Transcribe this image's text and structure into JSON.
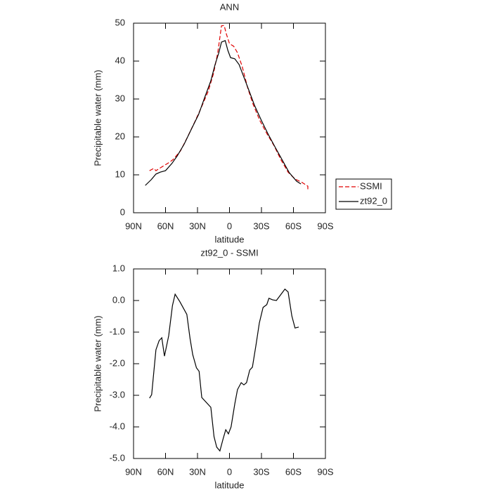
{
  "chart_data": [
    {
      "type": "line",
      "title": "ANN",
      "xlabel": "latitude",
      "ylabel": "Precipitable water  (mm)",
      "xlim": [
        90,
        -90
      ],
      "xticks": [
        {
          "value": 90,
          "label": "90N"
        },
        {
          "value": 60,
          "label": "60N"
        },
        {
          "value": 30,
          "label": "30N"
        },
        0,
        {
          "value": -30,
          "label": "30S"
        },
        {
          "value": -60,
          "label": "60S"
        },
        {
          "value": -90,
          "label": "90S"
        }
      ],
      "ylim": [
        0,
        50
      ],
      "yticks": [
        0,
        10,
        20,
        30,
        40,
        50
      ],
      "legend": "right",
      "series": [
        {
          "name": "SSMI",
          "color": "#e00000",
          "line_style": "dashed",
          "x": [
            75,
            71,
            69,
            64,
            58,
            53,
            46,
            40,
            33,
            27,
            20,
            15,
            11,
            7.5,
            5,
            3,
            0,
            -4,
            -7.5,
            -12,
            -17,
            -22,
            -28.5,
            -35,
            -42,
            -48,
            -55,
            -61.5,
            -68,
            -73.5,
            -73.5
          ],
          "values": [
            11.1,
            11.7,
            11.1,
            12,
            13,
            14,
            16.3,
            19.6,
            23.7,
            27.4,
            32,
            36.7,
            42.2,
            49.3,
            49.4,
            47.2,
            44.6,
            43.9,
            42.2,
            38.5,
            33,
            28.7,
            24.3,
            20.9,
            17.6,
            14.1,
            10.7,
            8.9,
            8,
            7,
            6.1
          ]
        },
        {
          "name": "zt92_0",
          "color": "#000000",
          "line_style": "solid",
          "x": [
            79,
            73.5,
            69,
            65,
            60,
            54,
            49,
            42.5,
            36,
            29,
            23,
            17.5,
            13.5,
            10,
            7.5,
            4,
            1.5,
            -1,
            -5,
            -9,
            -14,
            -19,
            -23.5,
            -30,
            -36.5,
            -43,
            -49.5,
            -56,
            -63,
            -67
          ],
          "values": [
            7.2,
            8.7,
            10.2,
            10.7,
            11.1,
            13,
            15,
            18.1,
            21.9,
            25.9,
            30.6,
            34.8,
            39.1,
            42.2,
            45,
            45.4,
            42.8,
            40.9,
            40.6,
            39.1,
            35.4,
            31.7,
            28.3,
            24.3,
            20.6,
            17.2,
            13.9,
            10.6,
            8.3,
            7.6
          ]
        }
      ]
    },
    {
      "type": "line",
      "title": "zt92_0 - SSMI",
      "xlabel": "latitude",
      "ylabel": "Precipitable water  (mm)",
      "xlim": [
        90,
        -90
      ],
      "xticks": [
        {
          "value": 90,
          "label": "90N"
        },
        {
          "value": 60,
          "label": "60N"
        },
        {
          "value": 30,
          "label": "30N"
        },
        0,
        {
          "value": -30,
          "label": "30S"
        },
        {
          "value": -60,
          "label": "60S"
        },
        {
          "value": -90,
          "label": "90S"
        }
      ],
      "ylim": [
        -5,
        1
      ],
      "yticks": [
        {
          "value": -5,
          "label": "-5.0"
        },
        {
          "value": -4,
          "label": "-4.0"
        },
        {
          "value": -3,
          "label": "-3.0"
        },
        {
          "value": -2,
          "label": "-2.0"
        },
        {
          "value": -1,
          "label": "-1.0"
        },
        {
          "value": 0,
          "label": "0.0"
        },
        {
          "value": 1,
          "label": "1.0"
        }
      ],
      "series": [
        {
          "color": "#000000",
          "line_style": "solid",
          "x": [
            75,
            73,
            69,
            66,
            63.5,
            61,
            57,
            53.5,
            51,
            46.5,
            40,
            37,
            34.5,
            31,
            28.5,
            26,
            17.5,
            14.5,
            12,
            9,
            6,
            3.5,
            1,
            -1.5,
            -5,
            -7.5,
            -11,
            -13.5,
            -16,
            -19,
            -21.5,
            -25,
            -28,
            -31.5,
            -35,
            -37,
            -40.5,
            -44,
            -48,
            -52,
            -55,
            -58.5,
            -61.5,
            -65
          ],
          "values": [
            -3.09,
            -2.98,
            -1.56,
            -1.27,
            -1.18,
            -1.76,
            -1.11,
            -0.16,
            0.2,
            -0.04,
            -0.44,
            -1.2,
            -1.71,
            -2.13,
            -2.24,
            -3.07,
            -3.38,
            -4.31,
            -4.64,
            -4.76,
            -4.38,
            -4.09,
            -4.22,
            -4.0,
            -3.27,
            -2.82,
            -2.6,
            -2.67,
            -2.6,
            -2.2,
            -2.11,
            -1.38,
            -0.71,
            -0.22,
            -0.13,
            0.07,
            0.02,
            0.0,
            0.18,
            0.36,
            0.27,
            -0.49,
            -0.87,
            -0.84
          ]
        }
      ]
    }
  ]
}
